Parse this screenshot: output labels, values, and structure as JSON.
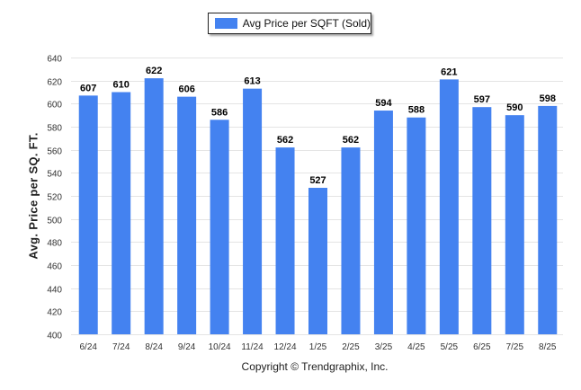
{
  "legend": {
    "label": "Avg Price per SQFT (Sold)"
  },
  "footer": {
    "copyright": "Copyright © Trendgraphix, Inc."
  },
  "colors": {
    "bar": "#4482f0",
    "grid": "#e4e4e4",
    "axis_text": "#333333"
  },
  "chart_data": {
    "type": "bar",
    "categories": [
      "6/24",
      "7/24",
      "8/24",
      "9/24",
      "10/24",
      "11/24",
      "12/24",
      "1/25",
      "2/25",
      "3/25",
      "4/25",
      "5/25",
      "6/25",
      "7/25",
      "8/25"
    ],
    "series": [
      {
        "name": "Avg Price per SQFT (Sold)",
        "values": [
          607,
          610,
          622,
          606,
          586,
          613,
          562,
          527,
          562,
          594,
          588,
          621,
          597,
          590,
          598
        ]
      }
    ],
    "ylabel": "Avg. Price per SQ. FT.",
    "xlabel": "",
    "ylim": [
      400,
      640
    ],
    "yticks": [
      400,
      420,
      440,
      460,
      480,
      500,
      520,
      540,
      560,
      580,
      600,
      620,
      640
    ],
    "grid": true,
    "legend_position": "top-center",
    "data_labels": true
  }
}
